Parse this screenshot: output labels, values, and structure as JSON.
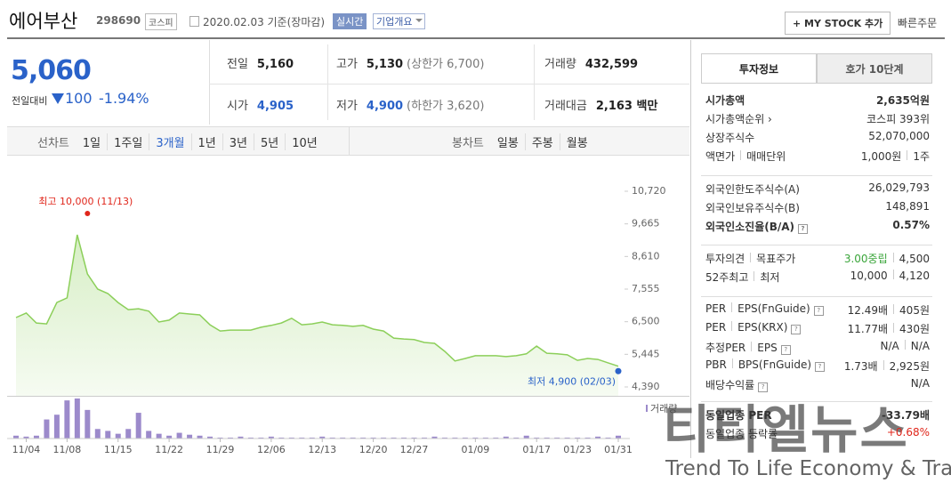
{
  "header": {
    "name": "에어부산",
    "code": "298690",
    "market": "코스피",
    "date": "2020.02.03 기준(장마감)",
    "realtime": "실시간",
    "company": "기업개요",
    "mystock": "+ MY STOCK 추가",
    "quick": "빠른주문"
  },
  "price": {
    "current": "5,060",
    "change_label": "전일대비",
    "change": "100",
    "rate": "-1.94%"
  },
  "summary": {
    "rows": [
      [
        {
          "label": "전일",
          "value": "5,160"
        },
        {
          "label": "고가",
          "value": "5,130",
          "note": "(상한가 6,700)"
        },
        {
          "label": "거래량",
          "value": "432,599"
        }
      ],
      [
        {
          "label": "시가",
          "value": "4,905"
        },
        {
          "label": "저가",
          "value": "4,900",
          "note": "(하한가 3,620)"
        },
        {
          "label": "거래대금",
          "value": "2,163 백만"
        }
      ]
    ]
  },
  "periods": {
    "line_label": "선차트",
    "line": [
      "1일",
      "1주일",
      "3개월",
      "1년",
      "3년",
      "5년",
      "10년"
    ],
    "candle_label": "봉차트",
    "candle": [
      "일봉",
      "주봉",
      "월봉"
    ]
  },
  "chart": {
    "type": "line",
    "color": "#8ccf5a",
    "volume_color": "#9c8acb",
    "dates": [
      null,
      "11/04",
      null,
      null,
      null,
      "11/08",
      null,
      null,
      null,
      null,
      "11/15",
      null,
      null,
      null,
      null,
      "11/22",
      null,
      null,
      null,
      null,
      "11/29",
      null,
      null,
      null,
      null,
      "12/06",
      null,
      null,
      null,
      null,
      "12/13",
      null,
      null,
      null,
      null,
      "12/20",
      null,
      null,
      null,
      "12/27",
      null,
      null,
      null,
      null,
      null,
      "01/09",
      null,
      null,
      null,
      null,
      null,
      "01/17",
      null,
      null,
      null,
      "01/23",
      null,
      null,
      null,
      "01/31"
    ],
    "values": [
      6635,
      6780,
      6460,
      6430,
      7120,
      7270,
      9310,
      8040,
      7555,
      7410,
      7120,
      6890,
      6920,
      6840,
      6490,
      6550,
      6780,
      6750,
      6720,
      6400,
      6200,
      6230,
      6230,
      6230,
      6320,
      6380,
      6460,
      6610,
      6400,
      6430,
      6490,
      6400,
      6380,
      6350,
      6380,
      6260,
      6200,
      5970,
      5940,
      5920,
      5830,
      5800,
      5540,
      5230,
      5310,
      5400,
      5400,
      5400,
      5370,
      5400,
      5460,
      5710,
      5480,
      5460,
      5430,
      5250,
      5310,
      5280,
      5170,
      5060
    ],
    "volume": [
      300000,
      200000,
      300000,
      2000000,
      2500000,
      4000000,
      4200000,
      3000000,
      1000000,
      800000,
      500000,
      1000000,
      2700000,
      800000,
      500000,
      300000,
      600000,
      400000,
      300000,
      200000,
      100000,
      100000,
      200000,
      100000,
      100000,
      200000,
      100000,
      100000,
      100000,
      100000,
      200000,
      100000,
      100000,
      100000,
      100000,
      100000,
      100000,
      100000,
      100000,
      100000,
      100000,
      200000,
      100000,
      100000,
      100000,
      100000,
      100000,
      100000,
      200000,
      100000,
      300000,
      100000,
      100000,
      100000,
      100000,
      100000,
      100000,
      200000,
      100000,
      300000
    ],
    "volume_label": "거래량",
    "ylim": [
      4390,
      10720
    ],
    "yticks": [
      {
        "value": 10720,
        "label": "10,720"
      },
      {
        "value": 9665,
        "label": "9,665"
      },
      {
        "value": 8610,
        "label": "8,610"
      },
      {
        "value": 7555,
        "label": "7,555"
      },
      {
        "value": 6500,
        "label": "6,500"
      },
      {
        "value": 5445,
        "label": "5,445"
      },
      {
        "value": 4390,
        "label": "4,390"
      }
    ],
    "high": {
      "label": "최고 10,000 (11/13)",
      "value": 10000
    },
    "low": {
      "label": "최저 4,900 (02/03)",
      "value": 4900
    }
  },
  "info": {
    "tabs": [
      "투자정보",
      "호가 10단계"
    ],
    "groups": [
      [
        {
          "label": [
            "시가총액"
          ],
          "value": [
            "2,635억원"
          ],
          "bold": true
        },
        {
          "label": [
            "시가총액순위 ›"
          ],
          "value": [
            "코스피 393위"
          ]
        },
        {
          "label": [
            "상장주식수"
          ],
          "value": [
            "52,070,000"
          ]
        },
        {
          "label": [
            "액면가",
            "매매단위"
          ],
          "value": [
            "1,000원",
            "1주"
          ]
        }
      ],
      [
        {
          "label": [
            "외국인한도주식수(A)"
          ],
          "value": [
            "26,029,793"
          ]
        },
        {
          "label": [
            "외국인보유주식수(B)"
          ],
          "value": [
            "148,891"
          ]
        },
        {
          "label": [
            "외국인소진율(B/A)"
          ],
          "value": [
            "0.57%"
          ],
          "bold": true,
          "help": true
        }
      ],
      [
        {
          "label": [
            "투자의견",
            "목표주가"
          ],
          "value": [
            "3.00중립",
            "4,500"
          ],
          "accent": "#3aa53a"
        },
        {
          "label": [
            "52주최고",
            "최저"
          ],
          "value": [
            "10,000",
            "4,120"
          ]
        }
      ],
      [
        {
          "label": [
            "PER",
            "EPS(FnGuide)"
          ],
          "value": [
            "12.49배",
            "405원"
          ],
          "help": true
        },
        {
          "label": [
            "PER",
            "EPS(KRX)"
          ],
          "value": [
            "11.77배",
            "430원"
          ],
          "help": true
        },
        {
          "label": [
            "추정PER",
            "EPS"
          ],
          "value": [
            "N/A",
            "N/A"
          ],
          "help": true
        },
        {
          "label": [
            "PBR",
            "BPS(FnGuide)"
          ],
          "value": [
            "1.73배",
            "2,925원"
          ],
          "help": true
        },
        {
          "label": [
            "배당수익률"
          ],
          "value": [
            "N/A"
          ],
          "help": true
        }
      ],
      [
        {
          "label": [
            "동일업종 PER"
          ],
          "value": [
            "-33.79배"
          ],
          "bold": true
        },
        {
          "label": [
            "동일업종 등락률"
          ],
          "value": [
            "+0.68%"
          ],
          "accent": "#e0261b"
        }
      ]
    ]
  },
  "watermark": {
    "logo": "티티엘뉴스",
    "slogan": "Trend To Life Economy & Travel"
  }
}
